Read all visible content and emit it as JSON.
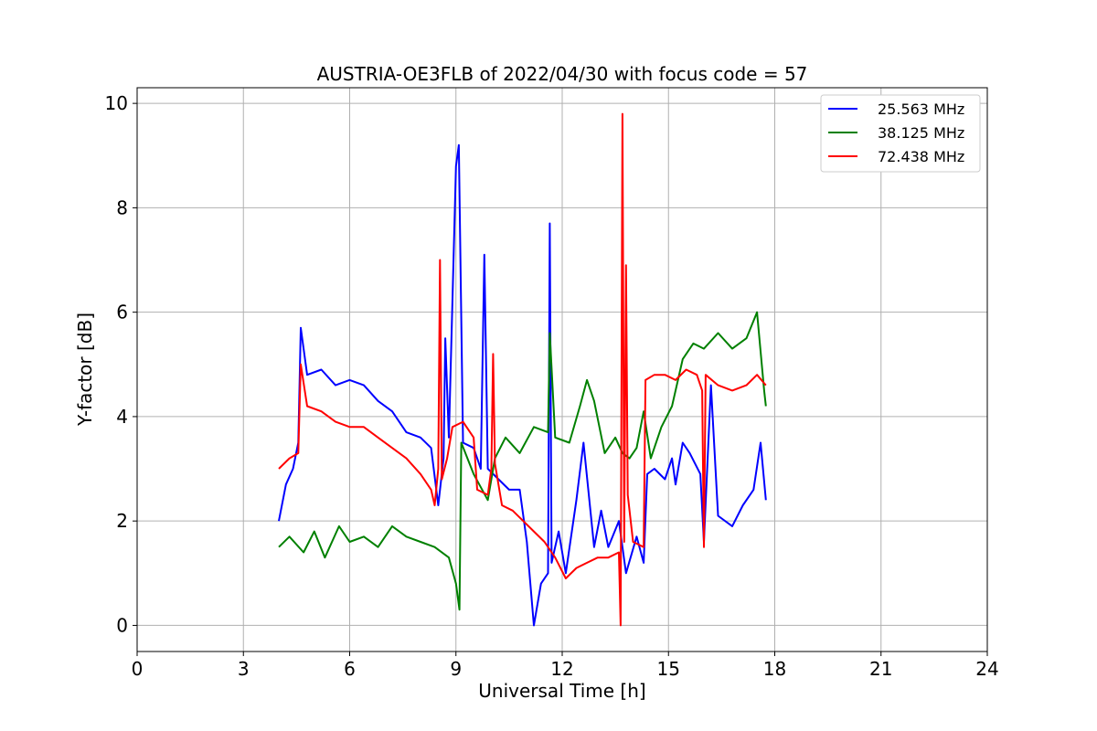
{
  "chart_data": {
    "type": "line",
    "title": "AUSTRIA-OE3FLB of 2022/04/30 with focus code = 57",
    "xlabel": "Universal Time [h]",
    "ylabel": "Y-factor [dB]",
    "xlim": [
      0,
      24
    ],
    "ylim": [
      -0.5,
      10.3
    ],
    "xticks": [
      0,
      3,
      6,
      9,
      12,
      15,
      18,
      21,
      24
    ],
    "yticks": [
      0,
      2,
      4,
      6,
      8,
      10
    ],
    "grid": true,
    "legend_position": "top-right",
    "series": [
      {
        "name": "25.563 MHz",
        "color": "#0000ff",
        "points": [
          [
            4.0,
            2.0
          ],
          [
            4.2,
            2.7
          ],
          [
            4.4,
            3.0
          ],
          [
            4.55,
            3.5
          ],
          [
            4.62,
            5.7
          ],
          [
            4.8,
            4.8
          ],
          [
            5.2,
            4.9
          ],
          [
            5.6,
            4.6
          ],
          [
            6.0,
            4.7
          ],
          [
            6.4,
            4.6
          ],
          [
            6.8,
            4.3
          ],
          [
            7.2,
            4.1
          ],
          [
            7.6,
            3.7
          ],
          [
            8.0,
            3.6
          ],
          [
            8.3,
            3.4
          ],
          [
            8.5,
            2.3
          ],
          [
            8.65,
            3.2
          ],
          [
            8.7,
            5.5
          ],
          [
            8.8,
            3.6
          ],
          [
            9.0,
            8.8
          ],
          [
            9.08,
            9.2
          ],
          [
            9.2,
            3.5
          ],
          [
            9.5,
            3.4
          ],
          [
            9.7,
            3.0
          ],
          [
            9.8,
            7.1
          ],
          [
            9.9,
            3.0
          ],
          [
            10.2,
            2.8
          ],
          [
            10.5,
            2.6
          ],
          [
            10.8,
            2.6
          ],
          [
            11.0,
            1.6
          ],
          [
            11.2,
            0.0
          ],
          [
            11.4,
            0.8
          ],
          [
            11.6,
            1.0
          ],
          [
            11.65,
            7.7
          ],
          [
            11.7,
            1.2
          ],
          [
            11.9,
            1.8
          ],
          [
            12.1,
            1.0
          ],
          [
            12.4,
            2.4
          ],
          [
            12.6,
            3.5
          ],
          [
            12.9,
            1.5
          ],
          [
            13.1,
            2.2
          ],
          [
            13.3,
            1.5
          ],
          [
            13.6,
            2.0
          ],
          [
            13.8,
            1.0
          ],
          [
            14.1,
            1.7
          ],
          [
            14.3,
            1.2
          ],
          [
            14.4,
            2.9
          ],
          [
            14.6,
            3.0
          ],
          [
            14.9,
            2.8
          ],
          [
            15.1,
            3.2
          ],
          [
            15.2,
            2.7
          ],
          [
            15.4,
            3.5
          ],
          [
            15.6,
            3.3
          ],
          [
            15.9,
            2.9
          ],
          [
            16.0,
            1.6
          ],
          [
            16.2,
            4.6
          ],
          [
            16.4,
            2.1
          ],
          [
            16.8,
            1.9
          ],
          [
            17.1,
            2.3
          ],
          [
            17.4,
            2.6
          ],
          [
            17.6,
            3.5
          ],
          [
            17.75,
            2.4
          ]
        ]
      },
      {
        "name": "38.125 MHz",
        "color": "#008000",
        "points": [
          [
            4.0,
            1.5
          ],
          [
            4.3,
            1.7
          ],
          [
            4.7,
            1.4
          ],
          [
            5.0,
            1.8
          ],
          [
            5.3,
            1.3
          ],
          [
            5.7,
            1.9
          ],
          [
            6.0,
            1.6
          ],
          [
            6.4,
            1.7
          ],
          [
            6.8,
            1.5
          ],
          [
            7.2,
            1.9
          ],
          [
            7.6,
            1.7
          ],
          [
            8.0,
            1.6
          ],
          [
            8.4,
            1.5
          ],
          [
            8.8,
            1.3
          ],
          [
            9.0,
            0.8
          ],
          [
            9.1,
            0.3
          ],
          [
            9.15,
            3.5
          ],
          [
            9.5,
            2.9
          ],
          [
            9.9,
            2.4
          ],
          [
            10.1,
            3.2
          ],
          [
            10.4,
            3.6
          ],
          [
            10.8,
            3.3
          ],
          [
            11.2,
            3.8
          ],
          [
            11.6,
            3.7
          ],
          [
            11.65,
            5.6
          ],
          [
            11.8,
            3.6
          ],
          [
            12.2,
            3.5
          ],
          [
            12.5,
            4.2
          ],
          [
            12.7,
            4.7
          ],
          [
            12.9,
            4.3
          ],
          [
            13.2,
            3.3
          ],
          [
            13.5,
            3.6
          ],
          [
            13.7,
            3.3
          ],
          [
            13.9,
            3.2
          ],
          [
            14.1,
            3.4
          ],
          [
            14.3,
            4.1
          ],
          [
            14.5,
            3.2
          ],
          [
            14.8,
            3.8
          ],
          [
            15.1,
            4.2
          ],
          [
            15.4,
            5.1
          ],
          [
            15.7,
            5.4
          ],
          [
            16.0,
            5.3
          ],
          [
            16.4,
            5.6
          ],
          [
            16.8,
            5.3
          ],
          [
            17.2,
            5.5
          ],
          [
            17.5,
            6.0
          ],
          [
            17.7,
            4.5
          ],
          [
            17.75,
            4.2
          ]
        ]
      },
      {
        "name": "72.438 MHz",
        "color": "#ff0000",
        "points": [
          [
            4.0,
            3.0
          ],
          [
            4.3,
            3.2
          ],
          [
            4.55,
            3.3
          ],
          [
            4.62,
            5.0
          ],
          [
            4.8,
            4.2
          ],
          [
            5.2,
            4.1
          ],
          [
            5.6,
            3.9
          ],
          [
            6.0,
            3.8
          ],
          [
            6.4,
            3.8
          ],
          [
            6.8,
            3.6
          ],
          [
            7.2,
            3.4
          ],
          [
            7.6,
            3.2
          ],
          [
            8.0,
            2.9
          ],
          [
            8.3,
            2.6
          ],
          [
            8.4,
            2.3
          ],
          [
            8.5,
            3.0
          ],
          [
            8.55,
            7.0
          ],
          [
            8.6,
            2.8
          ],
          [
            8.75,
            3.2
          ],
          [
            8.9,
            3.8
          ],
          [
            9.2,
            3.9
          ],
          [
            9.5,
            3.6
          ],
          [
            9.6,
            2.6
          ],
          [
            9.9,
            2.5
          ],
          [
            10.0,
            3.0
          ],
          [
            10.05,
            5.2
          ],
          [
            10.1,
            3.1
          ],
          [
            10.3,
            2.3
          ],
          [
            10.6,
            2.2
          ],
          [
            10.9,
            2.0
          ],
          [
            11.2,
            1.8
          ],
          [
            11.5,
            1.6
          ],
          [
            11.8,
            1.3
          ],
          [
            12.1,
            0.9
          ],
          [
            12.4,
            1.1
          ],
          [
            12.7,
            1.2
          ],
          [
            13.0,
            1.3
          ],
          [
            13.3,
            1.3
          ],
          [
            13.6,
            1.4
          ],
          [
            13.65,
            0.0
          ],
          [
            13.7,
            9.8
          ],
          [
            13.75,
            1.6
          ],
          [
            13.8,
            6.9
          ],
          [
            13.85,
            2.5
          ],
          [
            14.0,
            1.6
          ],
          [
            14.3,
            1.5
          ],
          [
            14.35,
            4.7
          ],
          [
            14.6,
            4.8
          ],
          [
            14.9,
            4.8
          ],
          [
            15.2,
            4.7
          ],
          [
            15.5,
            4.9
          ],
          [
            15.8,
            4.8
          ],
          [
            15.95,
            4.5
          ],
          [
            16.0,
            1.5
          ],
          [
            16.05,
            4.8
          ],
          [
            16.4,
            4.6
          ],
          [
            16.8,
            4.5
          ],
          [
            17.2,
            4.6
          ],
          [
            17.5,
            4.8
          ],
          [
            17.75,
            4.6
          ]
        ]
      }
    ]
  }
}
